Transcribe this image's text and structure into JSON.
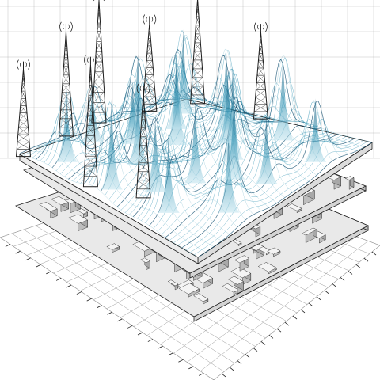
{
  "scene": {
    "subject": "isometric-wave-illustration",
    "palette": {
      "ink": "#1f1f1f",
      "grid": "#9a9a9a",
      "wave_deep": "#0f4c6e",
      "wave_mid": "#2b8fb0",
      "wave_light": "#bfe3ee",
      "board": "#e9e9e9",
      "paper": "#ffffff"
    },
    "layers": [
      "signal-surface",
      "circuit-board-top",
      "circuit-board-bottom",
      "ruler-grid"
    ],
    "tower_count": 8,
    "peak_count": 20
  }
}
